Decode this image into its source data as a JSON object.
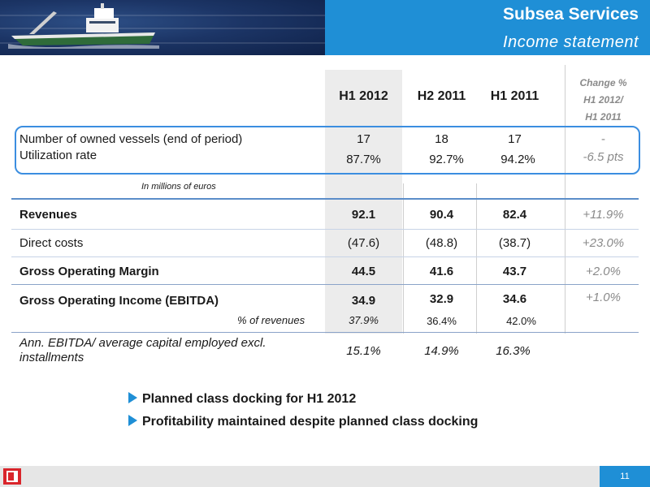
{
  "header": {
    "title": "Subsea Services",
    "subtitle": "Income statement"
  },
  "columns": {
    "h1_2012": "H1 2012",
    "h2_2011": "H2 2011",
    "h1_2011": "H1 2011",
    "change_line1": "Change %",
    "change_line2": "H1 2012/",
    "change_line3": "H1 2011"
  },
  "vessels": {
    "label1": "Number of owned vessels (end of period)",
    "label2": "Utilization rate",
    "owned": [
      "17",
      "18",
      "17",
      "-"
    ],
    "utilization": [
      "87.7%",
      "92.7%",
      "94.2%",
      "-6.5 pts"
    ]
  },
  "units_note": "In millions of euros",
  "rows": {
    "revenues": {
      "label": "Revenues",
      "values": [
        "92.1",
        "90.4",
        "82.4",
        "+11.9%"
      ]
    },
    "direct_costs": {
      "label": "Direct costs",
      "values": [
        "(47.6)",
        "(48.8)",
        "(38.7)",
        "+23.0%"
      ]
    },
    "gross_margin": {
      "label": "Gross Operating Margin",
      "values": [
        "44.5",
        "41.6",
        "43.7",
        "+2.0%"
      ]
    },
    "ebitda": {
      "label": "Gross Operating Income (EBITDA)",
      "values": [
        "34.9",
        "32.9",
        "34.6",
        "+1.0%"
      ]
    },
    "pct_revenues": {
      "label": "% of revenues",
      "values": [
        "37.9%",
        "36.4%",
        "42.0%"
      ]
    },
    "ann_ebitda": {
      "label1": "Ann. EBITDA/ average capital employed excl.",
      "label2": "installments",
      "values": [
        "15.1%",
        "14.9%",
        "16.3%"
      ]
    }
  },
  "bullets": [
    "Planned class docking for H1 2012",
    "Profitability maintained despite planned class docking"
  ],
  "footer": {
    "page": "11"
  }
}
